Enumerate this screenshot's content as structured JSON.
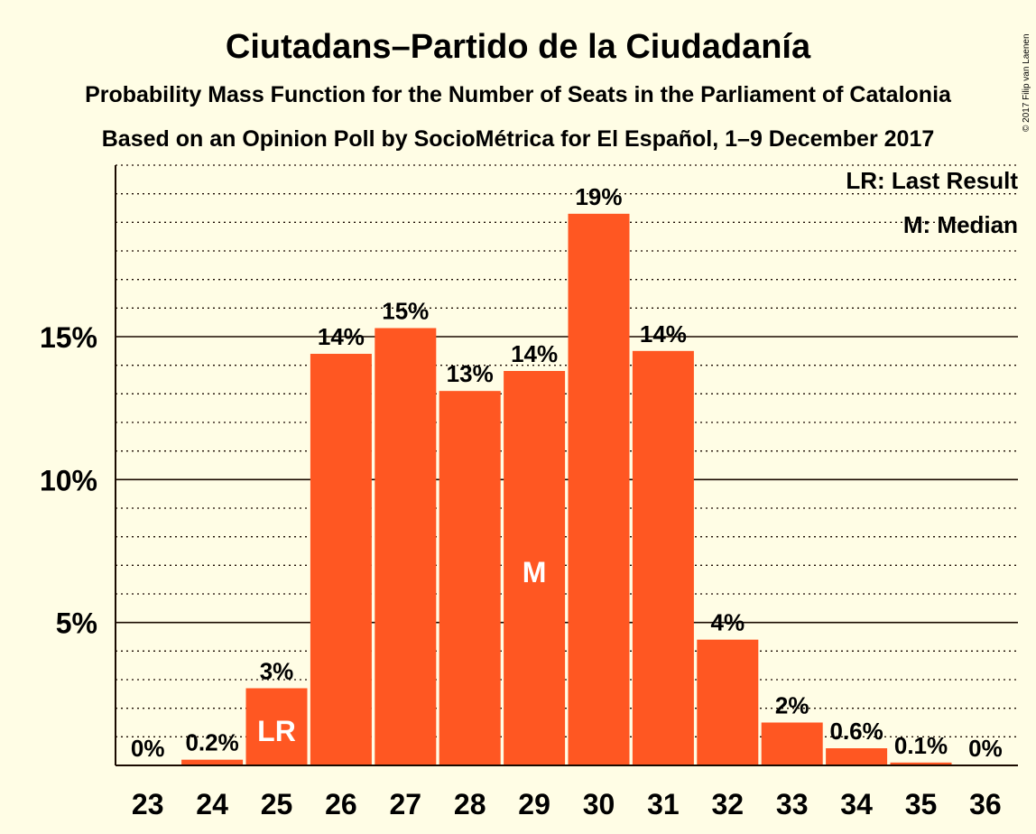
{
  "chart_data": {
    "type": "bar",
    "title": "Ciutadans–Partido de la Ciudadanía",
    "subtitle_1": "Probability Mass Function for the Number of Seats in the Parliament of Catalonia",
    "subtitle_2": "Based on an Opinion Poll by SocioMétrica for El Español, 1–9 December 2017",
    "copyright": "© 2017 Filip van Laenen",
    "legend": {
      "placement": "top-right",
      "last_result": "LR: Last Result",
      "median": "M: Median"
    },
    "categories": [
      "23",
      "24",
      "25",
      "26",
      "27",
      "28",
      "29",
      "30",
      "31",
      "32",
      "33",
      "34",
      "35",
      "36"
    ],
    "values": [
      0,
      0.2,
      2.7,
      14.4,
      15.3,
      13.1,
      13.8,
      19.3,
      14.5,
      4.4,
      1.5,
      0.6,
      0.1,
      0
    ],
    "labels": [
      "0%",
      "0.2%",
      "3%",
      "14%",
      "15%",
      "13%",
      "14%",
      "19%",
      "14%",
      "4%",
      "2%",
      "0.6%",
      "0.1%",
      "0%"
    ],
    "last_result": {
      "category": "25",
      "label": "LR"
    },
    "median": {
      "category": "29",
      "label": "M"
    },
    "yticks": [
      {
        "value": 5,
        "label": "5%"
      },
      {
        "value": 10,
        "label": "10%"
      },
      {
        "value": 15,
        "label": "15%"
      }
    ],
    "ylim": [
      0,
      21
    ],
    "xlabel": "",
    "ylabel": "",
    "grid": true,
    "minor_grid_step": 1,
    "colors": {
      "bar": "#FF5722",
      "background": "#FFFDE5",
      "text": "#1a0a00",
      "inbar_text": "#ffffff"
    }
  }
}
